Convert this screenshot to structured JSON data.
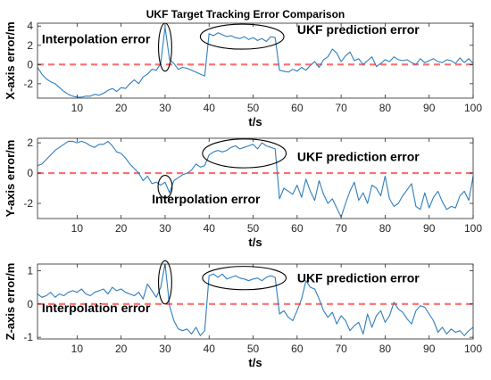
{
  "figure": {
    "title": "UKF Target Tracking Error Comparison"
  },
  "colors": {
    "error_line": "#2E7EBE",
    "zero_line": "#FF6E6E",
    "axes": "#262626",
    "ellipse": "#000000"
  },
  "chart_data": [
    {
      "type": "line",
      "xlabel": "t/s",
      "ylabel": "X-axis error/m",
      "xlim": [
        1,
        100
      ],
      "ylim": [
        -3.5,
        4.3
      ],
      "xticks": [
        10,
        20,
        30,
        40,
        50,
        60,
        70,
        80,
        90,
        100
      ],
      "yticks": [
        -2,
        0,
        2,
        4
      ],
      "grid": false,
      "reference_line": {
        "y": 0,
        "style": "dashed"
      },
      "x_start": 1,
      "x_step": 1,
      "values": [
        -0.3,
        -1.0,
        -1.5,
        -1.8,
        -2.0,
        -2.4,
        -2.8,
        -3.1,
        -3.3,
        -3.4,
        -3.4,
        -3.3,
        -3.3,
        -3.1,
        -3.2,
        -3.0,
        -2.7,
        -2.5,
        -2.8,
        -2.4,
        -2.5,
        -2.0,
        -1.6,
        -2.0,
        -1.3,
        -1.0,
        -0.5,
        -0.6,
        0.1,
        3.9,
        0.5,
        0.1,
        -0.5,
        -0.3,
        -0.4,
        -0.6,
        -0.8,
        -1.0,
        -1.2,
        3.2,
        3.0,
        3.3,
        3.1,
        2.9,
        3.0,
        2.8,
        2.7,
        2.9,
        2.6,
        2.8,
        2.5,
        2.7,
        2.4,
        2.9,
        2.8,
        -0.6,
        -0.7,
        -0.8,
        -0.5,
        -0.7,
        -0.3,
        -0.6,
        -0.1,
        0.3,
        -0.3,
        0.5,
        0.8,
        1.6,
        1.2,
        0.3,
        0.9,
        1.3,
        0.4,
        0.6,
        0.0,
        0.4,
        0.8,
        -0.2,
        0.1,
        0.5,
        0.3,
        0.8,
        0.5,
        0.4,
        0.5,
        0.2,
        0.0,
        0.6,
        0.2,
        0.4,
        0.6,
        0.3,
        0.2,
        0.5,
        0.4,
        0.1,
        0.7,
        0.2,
        0.6,
        0.1
      ],
      "annotations": [
        {
          "text": "Interpolation error",
          "x": 2,
          "y": 2.2
        },
        {
          "text": "UKF prediction error",
          "x": 60,
          "y": 3.2
        }
      ],
      "ellipses": [
        {
          "cx": 30,
          "cy": 1.8,
          "rx": 1.5,
          "ry": 2.5
        },
        {
          "cx": 47.5,
          "cy": 2.9,
          "rx": 9.5,
          "ry": 1.3
        }
      ]
    },
    {
      "type": "line",
      "xlabel": "t/s",
      "ylabel": "Y-axis error/m",
      "xlim": [
        1,
        100
      ],
      "ylim": [
        -3.0,
        2.3
      ],
      "xticks": [
        10,
        20,
        30,
        40,
        50,
        60,
        70,
        80,
        90,
        100
      ],
      "yticks": [
        -2,
        0,
        2
      ],
      "grid": false,
      "reference_line": {
        "y": 0,
        "style": "dashed"
      },
      "x_start": 1,
      "x_step": 1,
      "values": [
        0.5,
        0.6,
        0.9,
        1.2,
        1.5,
        1.7,
        1.9,
        2.1,
        2.1,
        2.0,
        2.1,
        2.0,
        1.8,
        1.7,
        1.9,
        1.9,
        2.1,
        1.8,
        1.4,
        1.3,
        1.0,
        0.6,
        0.3,
        0.0,
        -0.5,
        -0.2,
        -0.7,
        -0.6,
        -0.8,
        -0.6,
        -1.3,
        -0.5,
        -0.3,
        -0.1,
        0.0,
        0.2,
        0.6,
        0.4,
        0.5,
        1.2,
        1.4,
        1.5,
        1.4,
        1.5,
        1.7,
        1.8,
        1.6,
        1.7,
        1.8,
        1.9,
        1.6,
        2.0,
        1.8,
        1.7,
        1.6,
        -1.7,
        -1.0,
        -1.2,
        -1.4,
        -0.8,
        -1.6,
        -0.4,
        -1.2,
        -1.8,
        -0.5,
        -1.4,
        -2.0,
        -1.7,
        -2.3,
        -2.9,
        -2.0,
        -1.2,
        -0.6,
        -1.8,
        -1.3,
        -2.0,
        -0.8,
        -1.0,
        -1.5,
        -0.2,
        -1.7,
        -2.2,
        -2.0,
        -1.5,
        -1.1,
        -0.7,
        -2.2,
        -2.4,
        -1.3,
        -2.3,
        -1.6,
        -1.2,
        -1.9,
        -2.4,
        -2.2,
        -2.3,
        -1.5,
        -1.2,
        -1.8,
        -0.2
      ],
      "annotations": [
        {
          "text": "UKF prediction error",
          "x": 60,
          "y": 0.8
        },
        {
          "text": "Interpolation error",
          "x": 27,
          "y": -2.0
        }
      ],
      "ellipses": [
        {
          "cx": 30,
          "cy": -0.9,
          "rx": 1.6,
          "ry": 0.75
        },
        {
          "cx": 48,
          "cy": 1.3,
          "rx": 9.5,
          "ry": 0.95
        }
      ]
    },
    {
      "type": "line",
      "xlabel": "t/s",
      "ylabel": "Z-axis error/m",
      "xlim": [
        1,
        100
      ],
      "ylim": [
        -1.05,
        1.2
      ],
      "xticks": [
        10,
        20,
        30,
        40,
        50,
        60,
        70,
        80,
        90,
        100
      ],
      "yticks": [
        -1,
        0,
        1
      ],
      "grid": false,
      "reference_line": {
        "y": 0,
        "style": "dashed"
      },
      "x_start": 1,
      "x_step": 1,
      "values": [
        0.3,
        0.2,
        0.25,
        0.35,
        0.2,
        0.3,
        0.25,
        0.35,
        0.4,
        0.35,
        0.45,
        0.3,
        0.25,
        0.35,
        0.4,
        0.45,
        0.3,
        0.5,
        0.4,
        0.45,
        0.35,
        0.3,
        0.25,
        0.35,
        0.15,
        0.6,
        0.4,
        0.2,
        0.5,
        1.2,
        -0.05,
        -0.5,
        -0.75,
        -0.8,
        -0.75,
        -0.9,
        -0.7,
        -0.95,
        -0.8,
        0.85,
        0.9,
        0.8,
        0.9,
        0.75,
        0.8,
        0.85,
        0.78,
        0.75,
        0.7,
        0.75,
        0.78,
        0.7,
        0.8,
        0.85,
        0.8,
        -0.3,
        -0.2,
        -0.4,
        -0.5,
        -0.2,
        0.15,
        0.7,
        0.5,
        0.45,
        0.15,
        -0.2,
        -0.4,
        -0.25,
        -0.6,
        -0.35,
        -0.5,
        -0.8,
        -0.65,
        -0.55,
        -0.9,
        -0.3,
        -0.7,
        -0.35,
        -0.2,
        -0.55,
        -0.35,
        0.05,
        -0.15,
        -0.25,
        -0.45,
        -0.6,
        -0.2,
        -0.05,
        -0.1,
        -0.3,
        -0.5,
        -0.85,
        -0.7,
        -0.9,
        -0.75,
        -0.85,
        -0.8,
        -0.95,
        -0.8,
        -0.7
      ],
      "annotations": [
        {
          "text": "UKF prediction error",
          "x": 60,
          "y": 0.65
        },
        {
          "text": "Interpolation error",
          "x": 2,
          "y": -0.25
        }
      ],
      "ellipses": [
        {
          "cx": 30,
          "cy": 0.65,
          "rx": 1.5,
          "ry": 0.65
        },
        {
          "cx": 48,
          "cy": 0.78,
          "rx": 9.5,
          "ry": 0.35
        }
      ]
    }
  ]
}
